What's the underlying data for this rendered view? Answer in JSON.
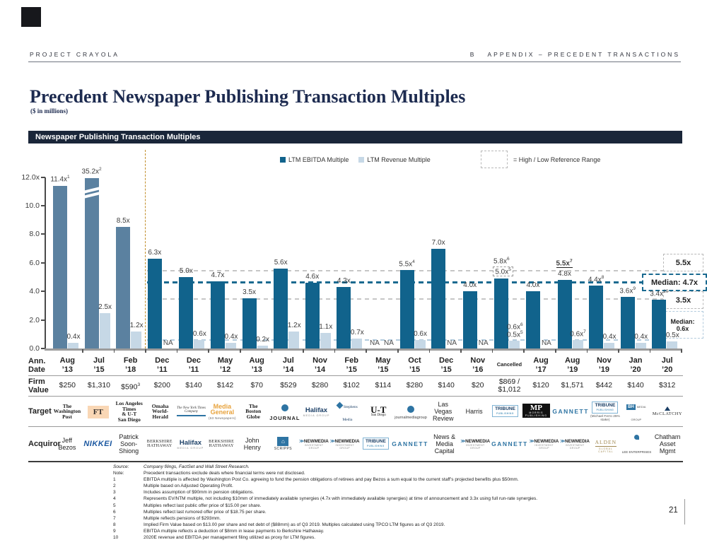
{
  "header": {
    "project": "PROJECT CRAYOLA",
    "section_letter": "B",
    "section_title": "APPENDIX – PRECEDENT TRANSACTIONS"
  },
  "title": {
    "main": "Precedent Newspaper Publishing Transaction Multiples",
    "subtitle": "($ in millions)"
  },
  "panel": {
    "title": "Newspaper Publishing Transaction Multiples"
  },
  "page_number": "21",
  "colors": {
    "ebitda_bar": "#11638C",
    "ebitda_bar_excluded": "#5B81A0",
    "revenue_bar": "#C6D8E6",
    "median_line": "#1A6A90",
    "reference_line": "#C6C6C6",
    "median_revenue_line": "#B3CBDD",
    "divider": "#C28F2C",
    "panel_bg": "#1A2639",
    "ft_logo_bg": "#F9D7B5",
    "media_general_gold": "#E8A33D"
  },
  "chart_data": {
    "type": "bar",
    "title": "Newspaper Publishing Transaction Multiples",
    "legend": [
      {
        "label": "LTM EBITDA Multiple",
        "color": "#11638C"
      },
      {
        "label": "LTM Revenue Multiple",
        "color": "#C6D8E6"
      }
    ],
    "legend_note": "= High / Low Reference Range",
    "ylim": [
      0,
      12
    ],
    "yticks": [
      {
        "value": 12,
        "label": "12.0x"
      },
      {
        "value": 10,
        "label": "10.0"
      },
      {
        "value": 8,
        "label": "8.0"
      },
      {
        "value": 6,
        "label": "6.0"
      },
      {
        "value": 4,
        "label": "4.0"
      },
      {
        "value": 2,
        "label": "2.0"
      },
      {
        "value": 0,
        "label": "0.0"
      }
    ],
    "reference_lines": {
      "high": 5.5,
      "low": 3.5,
      "median_ebitda": 4.7,
      "median_revenue": 0.6
    },
    "reference_labels": {
      "high": "5.5x",
      "median_ebitda": "Median: 4.7x",
      "low": "3.5x",
      "median_revenue_1": "Median:",
      "median_revenue_2": "0.6x"
    },
    "categories": [
      "Aug ’13",
      "Jul ’15",
      "Feb ’18",
      "Dec ’11",
      "Dec ’11",
      "May ’12",
      "Aug ’13",
      "Jul ’14",
      "Nov ’14",
      "Feb ’15",
      "May ’15",
      "Oct ’15",
      "Dec ’15",
      "Nov ’16",
      "Cancelled",
      "Aug ’17",
      "Aug ’19",
      "Nov ’19",
      "Jan ’20",
      "Jul ’20"
    ],
    "series": [
      {
        "name": "LTM EBITDA Multiple",
        "values": [
          11.4,
          35.2,
          8.5,
          6.3,
          5.0,
          4.7,
          3.5,
          5.6,
          4.6,
          4.3,
          null,
          5.5,
          7.0,
          4.0,
          5.0,
          4.0,
          4.8,
          4.4,
          3.6,
          3.4
        ]
      },
      {
        "name": "LTM Revenue Multiple",
        "values": [
          0.4,
          2.5,
          1.2,
          null,
          0.6,
          0.4,
          0.2,
          1.2,
          1.1,
          0.7,
          null,
          0.6,
          null,
          null,
          0.5,
          null,
          0.6,
          0.4,
          0.4,
          0.5
        ]
      }
    ],
    "columns": [
      {
        "e": 11.4,
        "elab": "11.4x",
        "esup": "1",
        "gray": true,
        "r": 0.4,
        "rlab": "0.4x"
      },
      {
        "e": 35.2,
        "draw": 11.95,
        "elab": "35.2x",
        "esup": "2",
        "gray": true,
        "brk": true,
        "r": 2.5,
        "rlab": "2.5x"
      },
      {
        "e": 8.5,
        "elab": "8.5x",
        "gray": true,
        "r": 1.2,
        "rlab": "1.2x"
      },
      {
        "e": 6.3,
        "elab": "6.3x",
        "r": null
      },
      {
        "e": 5.0,
        "elab": "5.0x",
        "r": 0.6,
        "rlab": "0.6x"
      },
      {
        "e": 4.7,
        "elab": "4.7x",
        "r": 0.4,
        "rlab": "0.4x"
      },
      {
        "e": 3.5,
        "elab": "3.5x",
        "r": 0.2,
        "rlab": "0.2x"
      },
      {
        "e": 5.6,
        "elab": "5.6x",
        "r": 1.2,
        "rlab": "1.2x"
      },
      {
        "e": 4.6,
        "elab": "4.6x",
        "r": 1.1,
        "rlab": "1.1x"
      },
      {
        "e": 4.3,
        "elab": "4.3x",
        "r": 0.7,
        "rlab": "0.7x"
      },
      {
        "e": null,
        "r": null
      },
      {
        "e": 5.5,
        "elab": "5.5x",
        "esup": "4",
        "r": 0.6,
        "rlab": "0.6x"
      },
      {
        "e": 7.0,
        "elab": "7.0x",
        "r": null
      },
      {
        "e": 4.0,
        "elab": "4.0x",
        "r": null
      },
      {
        "e": 4.9,
        "elab": "5.0x",
        "esup": "5",
        "eboxed": true,
        "etop": "5.8x",
        "etopsup": "6",
        "r": 0.55,
        "rlab": "0.5x",
        "rsup": "5",
        "rtop": "0.6x",
        "rtopsup": "6"
      },
      {
        "e": 4.0,
        "elab": "4.0x",
        "r": null
      },
      {
        "e": 4.8,
        "elab": "4.8x",
        "etop": "5.5x",
        "etopsup": "7",
        "etop_bold_underline": true,
        "r": 0.6,
        "rlab": "0.6x",
        "rsup": "7"
      },
      {
        "e": 4.4,
        "elab": "4.4x",
        "esup": "8",
        "r": 0.4,
        "rlab": "0.4x"
      },
      {
        "e": 3.6,
        "elab": "3.6x",
        "esup": "9",
        "r": 0.4,
        "rlab": "0.4x"
      },
      {
        "e": 3.4,
        "elab": "3.4x",
        "esup": "10",
        "r": 0.5,
        "rlab": "0.5x"
      }
    ],
    "na_text": "NA",
    "grid": false,
    "legend_position": "top"
  },
  "table": {
    "row_labels": {
      "date": [
        "Ann.",
        "Date"
      ],
      "firm": [
        "Firm",
        "Value"
      ],
      "target": "Target",
      "acquiror": "Acquiror"
    },
    "columns": [
      {
        "date": [
          "Aug",
          "’13"
        ],
        "firm": "$250",
        "target": {
          "kind": "blackletter",
          "lines": [
            "The",
            "Washington",
            "Post"
          ]
        },
        "acquiror": {
          "kind": "text",
          "lines": [
            "Jeff",
            "Bezos"
          ]
        }
      },
      {
        "date": [
          "Jul",
          "’15"
        ],
        "firm": "$1,310",
        "target": {
          "kind": "ft",
          "text": "FT"
        },
        "acquiror": {
          "kind": "nikkei",
          "text": "NIKKEI"
        }
      },
      {
        "date": [
          "Feb",
          "’18"
        ],
        "firm": "$590",
        "firm_sup": "3",
        "target": {
          "kind": "latimes",
          "lines": [
            "Los Angeles Times",
            "& U-T",
            "San Diego"
          ]
        },
        "acquiror": {
          "kind": "text",
          "lines": [
            "Patrick",
            "Soon-",
            "Shiong"
          ]
        }
      },
      {
        "date": [
          "Dec",
          "’11"
        ],
        "firm": "$200",
        "target": {
          "kind": "blackletter",
          "lines": [
            "Omaha",
            "World-Herald"
          ]
        },
        "acquiror": {
          "kind": "berkshire",
          "lines": [
            "Berkshire",
            "Hathaway"
          ]
        }
      },
      {
        "date": [
          "Dec",
          "’11"
        ],
        "firm": "$140",
        "target": {
          "kind": "nyt",
          "lines": [
            "The New York Times",
            "Company"
          ]
        },
        "acquiror": {
          "kind": "halifax",
          "text": "Halifax",
          "caption": "MEDIA GROUP"
        }
      },
      {
        "date": [
          "May",
          "’12"
        ],
        "firm": "$142",
        "target": {
          "kind": "mediageneral",
          "lines": [
            "Media",
            "General"
          ],
          "caption": "(63 Newspapers)"
        },
        "acquiror": {
          "kind": "berkshire",
          "lines": [
            "Berkshire",
            "Hathaway"
          ]
        }
      },
      {
        "date": [
          "Aug",
          "’13"
        ],
        "firm": "$70",
        "target": {
          "kind": "blackletter",
          "lines": [
            "The",
            "Boston",
            "Globe"
          ]
        },
        "acquiror": {
          "kind": "text",
          "lines": [
            "John",
            "Henry"
          ]
        }
      },
      {
        "date": [
          "Jul",
          "’14"
        ],
        "firm": "$529",
        "target": {
          "kind": "journal",
          "text": "JOURNAL"
        },
        "acquiror": {
          "kind": "scripps",
          "text": "SCRIPPS"
        }
      },
      {
        "date": [
          "Nov",
          "’14"
        ],
        "firm": "$280",
        "target": {
          "kind": "halifax",
          "text": "Halifax",
          "caption": "MEDIA GROUP"
        },
        "acquiror": {
          "kind": "newmedia",
          "text": "NEWMEDIA",
          "caption": "INVESTMENT GROUP"
        }
      },
      {
        "date": [
          "Feb",
          "’15"
        ],
        "firm": "$102",
        "target": {
          "kind": "stephens",
          "lines": [
            "Stephens",
            "Media"
          ]
        },
        "acquiror": {
          "kind": "newmedia",
          "text": "NEWMEDIA",
          "caption": "INVESTMENT GROUP"
        }
      },
      {
        "date": [
          "May",
          "’15"
        ],
        "firm": "$114",
        "target": {
          "kind": "ut",
          "text": "U-T",
          "caption": "San Diego"
        },
        "acquiror": {
          "kind": "tribune",
          "text": "TRIBUNE",
          "caption": "PUBLISHING"
        }
      },
      {
        "date": [
          "Oct",
          "’15"
        ],
        "firm": "$280",
        "target": {
          "kind": "jmg",
          "text": "journalmediagroup"
        },
        "acquiror": {
          "kind": "gannett",
          "text": "GANNETT"
        }
      },
      {
        "date": [
          "Dec",
          "’15"
        ],
        "firm": "$140",
        "target": {
          "kind": "text",
          "lines": [
            "Las",
            "Vegas",
            "Review"
          ]
        },
        "acquiror": {
          "kind": "text",
          "lines": [
            "News &",
            "Media",
            "Capital"
          ]
        }
      },
      {
        "date": [
          "Nov",
          "’16"
        ],
        "firm": "$20",
        "target": {
          "kind": "text",
          "lines": [
            "Harris"
          ]
        },
        "acquiror": {
          "kind": "newmedia",
          "text": "NEWMEDIA",
          "caption": "INVESTMENT GROUP"
        }
      },
      {
        "date": [
          "Cancelled"
        ],
        "date_small": true,
        "firm": "$869 /",
        "firm2": "$1,012",
        "target": {
          "kind": "tribune",
          "text": "TRIBUNE",
          "caption": "PUBLISHING"
        },
        "acquiror": {
          "kind": "gannett",
          "text": "GANNETT"
        }
      },
      {
        "date": [
          "Aug",
          "’17"
        ],
        "firm": "$120",
        "target": {
          "kind": "morris",
          "text": "MP",
          "caption": "MORRIS",
          "caption2": "PUBLISHING"
        },
        "acquiror": {
          "kind": "newmedia",
          "text": "NEWMEDIA",
          "caption": "INVESTMENT GROUP"
        }
      },
      {
        "date": [
          "Aug",
          "’19"
        ],
        "firm": "$1,571",
        "target": {
          "kind": "gannett",
          "text": "GANNETT"
        },
        "acquiror": {
          "kind": "newmedia",
          "text": "NEWMEDIA",
          "caption": "INVESTMENT GROUP"
        }
      },
      {
        "date": [
          "Nov",
          "’19"
        ],
        "firm": "$442",
        "target": {
          "kind": "tribune",
          "text": "TRIBUNE",
          "caption": "PUBLISHING",
          "note": "(Michael Ferro 25% stake)"
        },
        "acquiror": {
          "kind": "alden",
          "text": "ALDEN",
          "caption": "GLOBAL CAPITAL"
        }
      },
      {
        "date": [
          "Jan",
          "’20"
        ],
        "firm": "$140",
        "target": {
          "kind": "bh",
          "text": "BH",
          "caption": "MEDIA GROUP"
        },
        "acquiror": {
          "kind": "lee",
          "text": "LEE ENTERPRISES"
        }
      },
      {
        "date": [
          "Jul",
          "’20"
        ],
        "firm": "$312",
        "target": {
          "kind": "mcclatchy",
          "text": "McCLATCHY"
        },
        "acquiror": {
          "kind": "text",
          "lines": [
            "Chatham",
            "Asset",
            "Mgmt"
          ]
        }
      }
    ]
  },
  "footnotes": [
    {
      "label": "Source:",
      "text": "Company filings, FactSet and Wall Street Research.",
      "italic": true
    },
    {
      "label": "Note:",
      "text": "Precedent transactions exclude deals where financial terms were not disclosed."
    },
    {
      "label": "1",
      "text": "EBITDA multiple is affected by Washington Post Co. agreeing to fund the pension obligations of retirees and pay Bezos a sum equal to the current staff’s projected benefits plus $50mm."
    },
    {
      "label": "2",
      "text": "Multiple based on Adjusted Operating Profit."
    },
    {
      "label": "3",
      "text": "Includes assumption of $90mm in pension obligations."
    },
    {
      "label": "4",
      "text": "Represents EV/NTM multiple, not including $10mm of immediately available synergies (4.7x with immediately available synergies) at time of announcement and 3.3x using full run-rate synergies."
    },
    {
      "label": "5",
      "text": "Multiples reflect last public offer price of $15.00 per share."
    },
    {
      "label": "6",
      "text": "Multiples reflect last rumored offer price of $18.75 per share."
    },
    {
      "label": "7",
      "text": "Multiple reflects pensions of $293mm."
    },
    {
      "label": "8",
      "text": "Implied Firm Value based on $13.00 per share and net debt of ($88mm) as of Q3 2019. Multiples calculated using TPCO LTM figures as of Q3 2019."
    },
    {
      "label": "9",
      "text": "EBITDA multiple reflects a deduction of $8mm in lease payments to Berkshire Hathaway."
    },
    {
      "label": "10",
      "text": "2020E revenue and EBITDA per management filing utilized as proxy for LTM figures."
    }
  ]
}
